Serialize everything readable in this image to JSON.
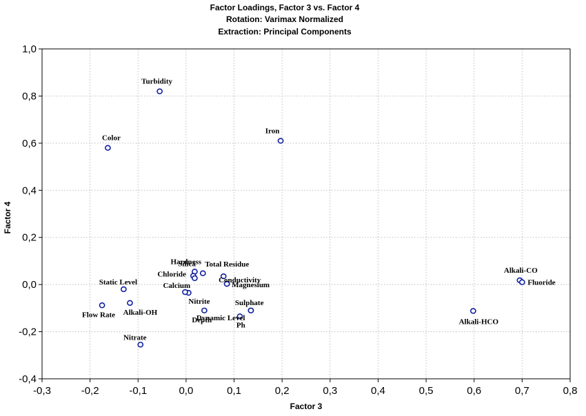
{
  "chart_data": {
    "type": "scatter",
    "title": "Factor Loadings, Factor 3 vs. Factor 4",
    "subtitle": [
      "Rotation: Varimax Normalized",
      "Extraction: Principal Components"
    ],
    "xlabel": "Factor 3",
    "ylabel": "Factor 4",
    "xlim": [
      -0.3,
      0.8
    ],
    "ylim": [
      -0.4,
      1.0
    ],
    "xticks": [
      "-0,3",
      "-0,2",
      "-0,1",
      "0,0",
      "0,1",
      "0,2",
      "0,3",
      "0,4",
      "0,5",
      "0,6",
      "0,7",
      "0,8"
    ],
    "yticks": [
      "-0,4",
      "-0,2",
      "0,0",
      "0,2",
      "0,4",
      "0,6",
      "0,8",
      "1,0"
    ],
    "grid": true,
    "points": [
      {
        "label": "Turbidity",
        "x": -0.055,
        "y": 0.82
      },
      {
        "label": "Color",
        "x": -0.163,
        "y": 0.58
      },
      {
        "label": "Iron",
        "x": 0.197,
        "y": 0.61
      },
      {
        "label": "Static Level",
        "x": -0.13,
        "y": -0.02
      },
      {
        "label": "Flow Rate",
        "x": -0.175,
        "y": -0.088
      },
      {
        "label": "Alkali-OH",
        "x": -0.117,
        "y": -0.078
      },
      {
        "label": "Nitrate",
        "x": -0.095,
        "y": -0.255
      },
      {
        "label": "Hardness",
        "x": 0.018,
        "y": 0.055
      },
      {
        "label": "Silica",
        "x": 0.035,
        "y": 0.048
      },
      {
        "label": "Chloride",
        "x": 0.015,
        "y": 0.037
      },
      {
        "label": "Calcium",
        "x": 0.018,
        "y": 0.027
      },
      {
        "label": "Nitrite",
        "x": 0.005,
        "y": -0.035
      },
      {
        "label": "",
        "x": -0.002,
        "y": -0.032
      },
      {
        "label": "Depth",
        "x": 0.038,
        "y": -0.11
      },
      {
        "label": "Total Residue",
        "x": 0.078,
        "y": 0.035
      },
      {
        "label": "Conductivity",
        "x": 0.085,
        "y": 0.003
      },
      {
        "label": "Magnesium",
        "x": 0.085,
        "y": 0.003
      },
      {
        "label": "Dynamic Level",
        "x": 0.135,
        "y": -0.11
      },
      {
        "label": "Sulphate",
        "x": 0.135,
        "y": -0.11
      },
      {
        "label": "Ph",
        "x": 0.112,
        "y": -0.135
      },
      {
        "label": "Alkali-HCO",
        "x": 0.598,
        "y": -0.112
      },
      {
        "label": "Alkali-CO",
        "x": 0.695,
        "y": 0.018
      },
      {
        "label": "Fluoride",
        "x": 0.7,
        "y": 0.01
      }
    ]
  }
}
